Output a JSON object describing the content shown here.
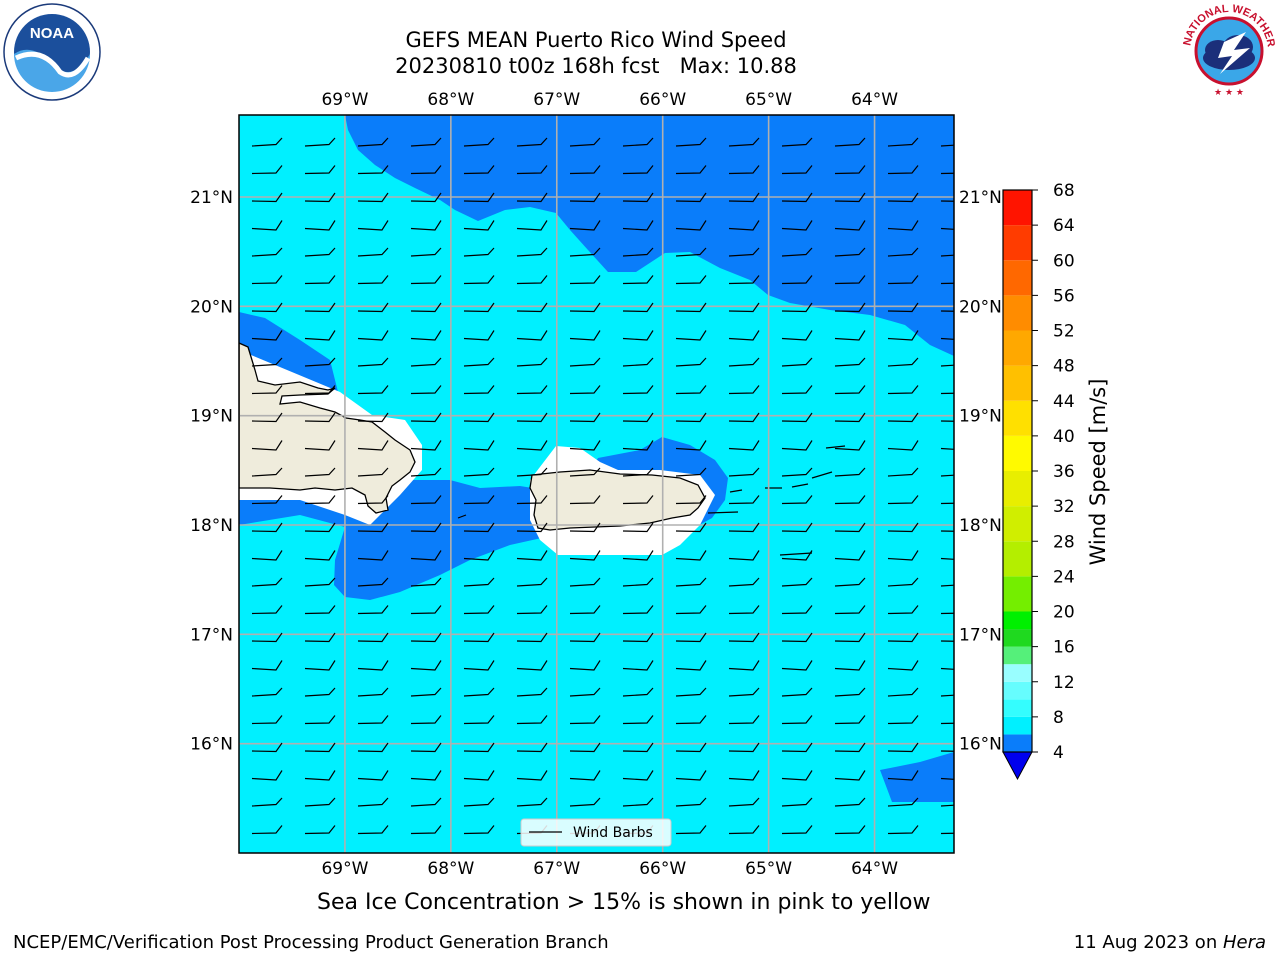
{
  "title": {
    "line1": "GEFS MEAN Puerto Rico Wind Speed",
    "line2": "20230810 t00z 168h fcst   Max: 10.88"
  },
  "axes": {
    "lon_labels": [
      "69°W",
      "68°W",
      "67°W",
      "66°W",
      "65°W",
      "64°W"
    ],
    "lat_labels": [
      "21°N",
      "20°N",
      "19°N",
      "18°N",
      "17°N",
      "16°N"
    ],
    "lon_values": [
      -69,
      -68,
      -67,
      -66,
      -65,
      -64
    ],
    "lat_values": [
      21,
      20,
      19,
      18,
      17,
      16
    ],
    "extent": {
      "lon": [
        -70,
        -63.25
      ],
      "lat": [
        15,
        21.75
      ]
    },
    "grid": true
  },
  "legend": {
    "label": "Wind Barbs",
    "placement": "lower-center"
  },
  "colorbar": {
    "label": "Wind Speed [m/s]",
    "ticks": [
      "68",
      "64",
      "60",
      "56",
      "52",
      "48",
      "44",
      "40",
      "36",
      "32",
      "28",
      "24",
      "20",
      "16",
      "12",
      "8",
      "4"
    ],
    "levels": [
      4,
      6,
      8,
      10,
      12,
      14,
      16,
      18,
      20,
      24,
      28,
      32,
      36,
      40,
      44,
      48,
      52,
      56,
      60,
      64,
      68
    ],
    "colors": [
      "#0a7dfa",
      "#00f0ff",
      "#34fdfe",
      "#66fdfe",
      "#99feff",
      "#55f07a",
      "#1fd91f",
      "#00f000",
      "#74ee00",
      "#b4ee00",
      "#d0ee00",
      "#e8ee00",
      "#fffa00",
      "#ffe000",
      "#ffc000",
      "#ffa800",
      "#ff8c00",
      "#ff6800",
      "#ff3c00",
      "#ff1400"
    ],
    "under_color": "#0000ee",
    "extend": "min"
  },
  "map_colors": {
    "ocean_low": "#0a7dfa",
    "ocean_mid": "#00f0ff",
    "land": "#efecdc",
    "masked": "#ffffff"
  },
  "note": "Sea Ice Concentration > 15% is shown in pink to yellow",
  "footer": {
    "left": "NCEP/EMC/Verification Post Processing Product Generation Branch",
    "right_prefix": "11 Aug 2023 on ",
    "right_italic": "Hera"
  },
  "logos": {
    "noaa_text": "NOAA",
    "nws_text": "NATIONAL WEATHER SERVICE"
  }
}
